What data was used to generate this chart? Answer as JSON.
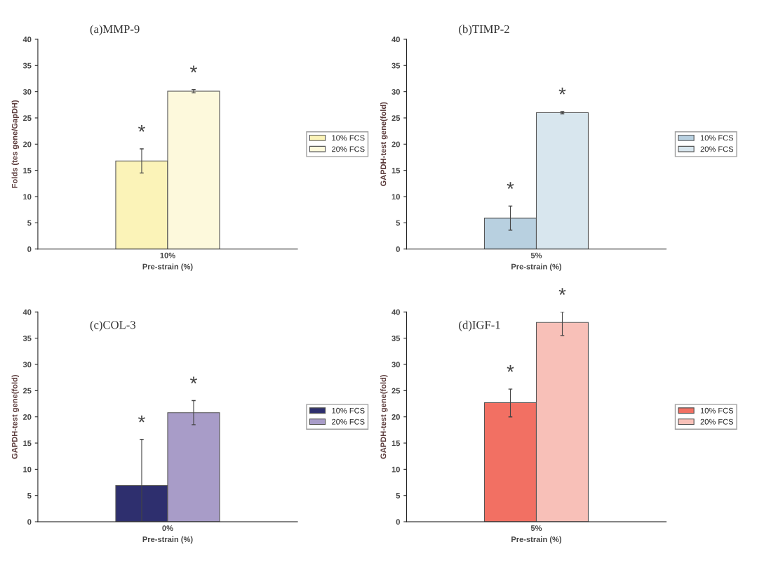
{
  "chart_data": [
    {
      "type": "bar",
      "title": "(a)MMP-9",
      "xlabel": "Pre-strain (%)",
      "ylabel": "Folds (tes gene/GapDH)",
      "categories": [
        "10%"
      ],
      "series": [
        {
          "name": "10% FCS",
          "color": "#fbf3b8",
          "values": [
            16.8
          ],
          "errors": [
            2.3
          ]
        },
        {
          "name": "20% FCS",
          "color": "#fdf9dc",
          "values": [
            30.1
          ],
          "errors": [
            0.3
          ]
        }
      ],
      "ylim": [
        0,
        40
      ],
      "yticks": [
        0,
        5,
        10,
        15,
        20,
        25,
        30,
        35,
        40
      ],
      "grid": false,
      "legend": "right",
      "annotations": [
        "*",
        "*"
      ]
    },
    {
      "type": "bar",
      "title": "(b)TIMP-2",
      "xlabel": "Pre-strain (%)",
      "ylabel": "GAPDH-test gene(fold)",
      "categories": [
        "5%"
      ],
      "series": [
        {
          "name": "10% FCS",
          "color": "#b8d0e0",
          "values": [
            5.9
          ],
          "errors": [
            2.3
          ]
        },
        {
          "name": "20% FCS",
          "color": "#d8e6ee",
          "values": [
            26.0
          ],
          "errors": [
            0.2
          ]
        }
      ],
      "ylim": [
        0,
        40
      ],
      "yticks": [
        0,
        5,
        10,
        15,
        20,
        25,
        30,
        35,
        40
      ],
      "grid": false,
      "legend": "right",
      "annotations": [
        "*",
        "*"
      ]
    },
    {
      "type": "bar",
      "title": "(c)COL-3",
      "xlabel": "Pre-strain (%)",
      "ylabel": "GAPDH-test gene(fold)",
      "categories": [
        "0%"
      ],
      "series": [
        {
          "name": "10% FCS",
          "color": "#2e2f6e",
          "values": [
            6.9
          ],
          "errors": [
            [
              0,
              15.7
            ]
          ]
        },
        {
          "name": "20% FCS",
          "color": "#a89cc8",
          "values": [
            20.8
          ],
          "errors": [
            [
              18.5,
              23.1
            ]
          ]
        }
      ],
      "ylim": [
        0,
        40
      ],
      "yticks": [
        0,
        5,
        10,
        15,
        20,
        25,
        30,
        35,
        40
      ],
      "grid": false,
      "legend": "right",
      "annotations": [
        "*",
        "*"
      ]
    },
    {
      "type": "bar",
      "title": "(d)IGF-1",
      "xlabel": "Pre-strain (%)",
      "ylabel": "GAPDH-test gene(fold)",
      "categories": [
        "5%"
      ],
      "series": [
        {
          "name": "10% FCS",
          "color": "#f27063",
          "values": [
            22.7
          ],
          "errors": [
            [
              20.0,
              25.3
            ]
          ]
        },
        {
          "name": "20% FCS",
          "color": "#f8c0b8",
          "values": [
            38.0
          ],
          "errors": [
            [
              35.5,
              40.0
            ]
          ]
        }
      ],
      "ylim": [
        0,
        40
      ],
      "yticks": [
        0,
        5,
        10,
        15,
        20,
        25,
        30,
        35,
        40
      ],
      "grid": false,
      "legend": "right",
      "annotations": [
        "*",
        "*"
      ]
    }
  ]
}
